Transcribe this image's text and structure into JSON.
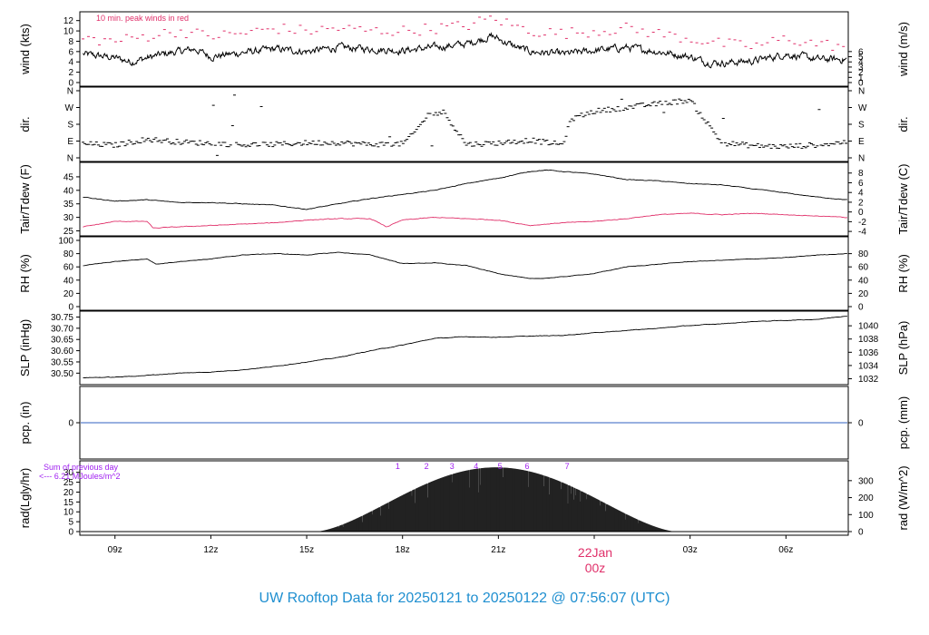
{
  "title": "UW Rooftop Data for 20250121  to  20250122 @ 07:56:07  (UTC)",
  "colors": {
    "title": "#1f8fd0",
    "peak": "#e0306a",
    "dew": "#e0306a",
    "pcp_line": "#3060c0",
    "sum_note": "#a020f0",
    "date_label": "#e0306a",
    "line": "#000000"
  },
  "x_axis": {
    "start_hour": 7.9,
    "end_hour": 31.95,
    "ticks": [
      {
        "hour": 9,
        "label": "09z"
      },
      {
        "hour": 12,
        "label": "12z"
      },
      {
        "hour": 15,
        "label": "15z"
      },
      {
        "hour": 18,
        "label": "18z"
      },
      {
        "hour": 21,
        "label": "21z"
      },
      {
        "hour": 24,
        "label": ""
      },
      {
        "hour": 27,
        "label": "03z"
      },
      {
        "hour": 30,
        "label": "06z"
      }
    ],
    "date_label": "22Jan",
    "date_sub": "00z"
  },
  "chart_data": [
    {
      "id": "wind",
      "type": "line",
      "ylabel": "wind (kts)",
      "ylabel_right": "wind (m/s)",
      "ylim": [
        0,
        13
      ],
      "yticks": [
        "0",
        "2",
        "4",
        "6",
        "8",
        "10",
        "12"
      ],
      "right_ticks": [
        {
          "value": 0,
          "label": "0"
        },
        {
          "value": 1,
          "label": "1"
        },
        {
          "value": 2,
          "label": "2"
        },
        {
          "value": 3,
          "label": "3"
        },
        {
          "value": 4,
          "label": "4"
        },
        {
          "value": 5,
          "label": "5"
        },
        {
          "value": 6,
          "label": "6"
        }
      ],
      "right_factor": 0.5144,
      "annotation": "10 min. peak winds in red",
      "noise": 1.1,
      "series": [
        {
          "role": "wind",
          "x": [
            8.0,
            9.0,
            9.5,
            10.5,
            11.5,
            12.0,
            13.0,
            14.0,
            15.0,
            16.0,
            17.0,
            18.0,
            19.0,
            20.0,
            20.8,
            21.5,
            22.0,
            23.0,
            24.0,
            25.0,
            26.0,
            27.0,
            27.5,
            28.0,
            29.0,
            30.0,
            31.0,
            31.9
          ],
          "y": [
            5.5,
            4.8,
            4.0,
            5.5,
            6.5,
            5.0,
            5.8,
            6.5,
            6.0,
            6.8,
            6.5,
            6.2,
            6.8,
            7.5,
            9.0,
            7.0,
            6.0,
            5.5,
            6.2,
            6.8,
            6.0,
            5.0,
            4.0,
            3.8,
            4.2,
            5.5,
            4.5,
            4.5
          ]
        },
        {
          "role": "peak",
          "x": [
            8.0,
            9.0,
            10.0,
            11.0,
            12.0,
            13.0,
            14.0,
            15.0,
            16.0,
            17.0,
            18.0,
            19.0,
            20.0,
            20.8,
            21.5,
            22.0,
            23.0,
            24.0,
            25.0,
            26.0,
            27.0,
            28.0,
            29.0,
            30.0,
            31.0,
            31.9
          ],
          "y": [
            8.5,
            8.0,
            9.0,
            10.0,
            9.0,
            9.5,
            10.5,
            10.0,
            10.5,
            10.0,
            10.0,
            10.5,
            11.0,
            12.5,
            11.0,
            10.0,
            9.5,
            10.0,
            10.5,
            9.5,
            8.5,
            7.5,
            7.0,
            8.5,
            7.5,
            7.0
          ]
        }
      ]
    },
    {
      "id": "dir",
      "type": "scatter",
      "ylabel": "dir.",
      "ylabel_right": "dir.",
      "ylim": [
        0,
        360
      ],
      "ytick_values": [
        0,
        90,
        180,
        270,
        360
      ],
      "yticks": [
        "N",
        "E",
        "S",
        "W",
        "N"
      ],
      "series": [
        {
          "role": "dir",
          "x": [
            8.0,
            9.0,
            10.0,
            11.0,
            12.0,
            13.0,
            14.0,
            15.0,
            16.0,
            17.0,
            18.0,
            18.3,
            18.8,
            19.3,
            19.6,
            20.0,
            21.0,
            22.0,
            23.0,
            23.3,
            24.0,
            25.0,
            26.0,
            26.5,
            27.0,
            28.0,
            29.0,
            30.0,
            31.0,
            31.9
          ],
          "y": [
            75,
            68,
            100,
            85,
            78,
            70,
            72,
            80,
            82,
            72,
            75,
            120,
            230,
            245,
            170,
            72,
            80,
            95,
            70,
            210,
            250,
            270,
            290,
            300,
            310,
            80,
            65,
            60,
            70,
            85
          ]
        }
      ]
    },
    {
      "id": "temp",
      "type": "line",
      "ylabel": "Tair/Tdew (F)",
      "ylabel_right": "Tair/Tdew (C)",
      "ylim": [
        24.5,
        49
      ],
      "yticks": [
        "25",
        "30",
        "35",
        "40",
        "45"
      ],
      "right_ticks": [
        {
          "value": 24.8,
          "label": "-4"
        },
        {
          "value": 28.4,
          "label": "-2"
        },
        {
          "value": 32.0,
          "label": "0"
        },
        {
          "value": 35.6,
          "label": "2"
        },
        {
          "value": 39.2,
          "label": "4"
        },
        {
          "value": 42.8,
          "label": "6"
        },
        {
          "value": 46.4,
          "label": "8"
        }
      ],
      "noise": 0.2,
      "series": [
        {
          "role": "tair",
          "x": [
            8.0,
            9.0,
            10.0,
            11.0,
            12.0,
            13.0,
            14.0,
            15.0,
            16.0,
            17.0,
            18.0,
            19.0,
            20.0,
            21.0,
            22.0,
            22.5,
            23.0,
            24.0,
            25.0,
            26.0,
            27.0,
            28.0,
            29.0,
            30.0,
            31.0,
            31.9
          ],
          "y": [
            37.5,
            36.0,
            36.5,
            35.5,
            35.5,
            35.0,
            34.5,
            33.0,
            35.0,
            37.0,
            38.5,
            40.0,
            42.5,
            44.5,
            47.0,
            47.5,
            47.0,
            46.0,
            44.0,
            43.5,
            42.5,
            42.0,
            40.5,
            39.0,
            37.5,
            36.5
          ]
        },
        {
          "role": "tdew",
          "x": [
            8.0,
            8.5,
            9.0,
            10.0,
            10.2,
            11.0,
            12.0,
            13.0,
            14.0,
            15.0,
            16.0,
            17.0,
            17.5,
            18.0,
            19.0,
            20.0,
            21.0,
            22.0,
            23.0,
            24.0,
            25.0,
            26.0,
            27.0,
            28.0,
            29.0,
            30.0,
            31.0,
            31.9
          ],
          "y": [
            26.5,
            27.5,
            28.5,
            28.5,
            26.0,
            26.5,
            27.0,
            27.5,
            28.0,
            29.0,
            29.5,
            29.5,
            26.5,
            29.0,
            30.0,
            29.5,
            29.0,
            27.0,
            28.0,
            28.5,
            29.5,
            31.0,
            31.5,
            31.0,
            31.5,
            31.0,
            30.5,
            30.0
          ]
        }
      ]
    },
    {
      "id": "rh",
      "type": "line",
      "ylabel": "RH (%)",
      "ylabel_right": "RH (%)",
      "ylim": [
        0,
        100
      ],
      "yticks": [
        "0",
        "20",
        "40",
        "60",
        "80",
        "100"
      ],
      "right_ticks": [
        {
          "value": 0,
          "label": "0"
        },
        {
          "value": 20,
          "label": "20"
        },
        {
          "value": 40,
          "label": "40"
        },
        {
          "value": 60,
          "label": "60"
        },
        {
          "value": 80,
          "label": "80"
        }
      ],
      "noise": 0.6,
      "series": [
        {
          "role": "rh",
          "x": [
            8.0,
            9.0,
            10.0,
            10.3,
            11.0,
            12.0,
            13.0,
            14.0,
            15.0,
            16.0,
            17.0,
            18.0,
            19.0,
            20.0,
            21.0,
            22.0,
            22.5,
            23.0,
            24.0,
            25.0,
            26.0,
            27.0,
            28.0,
            29.0,
            30.0,
            31.0,
            31.9
          ],
          "y": [
            62,
            68,
            72,
            64,
            68,
            72,
            78,
            80,
            78,
            82,
            78,
            65,
            66,
            62,
            50,
            42,
            43,
            45,
            50,
            60,
            64,
            68,
            70,
            72,
            74,
            78,
            80
          ]
        }
      ]
    },
    {
      "id": "slp",
      "type": "line",
      "ylabel": "SLP (inHg)",
      "ylabel_right": "SLP (hPa)",
      "ylim": [
        30.465,
        30.76
      ],
      "yticks": [
        "30.50",
        "30.55",
        "30.60",
        "30.65",
        "30.70",
        "30.75"
      ],
      "right_ticks": [
        {
          "value": 30.475,
          "label": "1032"
        },
        {
          "value": 30.534,
          "label": "1034"
        },
        {
          "value": 30.593,
          "label": "1036"
        },
        {
          "value": 30.652,
          "label": "1038"
        },
        {
          "value": 30.711,
          "label": "1040"
        }
      ],
      "noise": 0.002,
      "series": [
        {
          "role": "slp",
          "x": [
            8.0,
            9.0,
            10.0,
            11.0,
            12.0,
            13.0,
            14.0,
            15.0,
            16.0,
            17.0,
            18.0,
            19.0,
            20.0,
            21.0,
            22.0,
            23.0,
            24.0,
            25.0,
            26.0,
            27.0,
            28.0,
            29.0,
            30.0,
            31.0,
            31.9
          ],
          "y": [
            30.48,
            30.482,
            30.49,
            30.5,
            30.505,
            30.515,
            30.53,
            30.55,
            30.57,
            30.6,
            30.625,
            30.655,
            30.662,
            30.66,
            30.665,
            30.668,
            30.68,
            30.69,
            30.7,
            30.712,
            30.72,
            30.73,
            30.735,
            30.74,
            30.755
          ]
        }
      ]
    },
    {
      "id": "pcp",
      "type": "line",
      "ylabel": "pcp. (in)",
      "ylabel_right": "pcp. (mm)",
      "ylim": [
        -1,
        1
      ],
      "yticks": [
        "0"
      ],
      "ytick_values": [
        0
      ],
      "right_ticks": [
        {
          "value": 0,
          "label": "0"
        }
      ],
      "series": [
        {
          "role": "pcp",
          "x": [
            7.9,
            31.95
          ],
          "y": [
            0,
            0
          ]
        }
      ]
    },
    {
      "id": "rad",
      "type": "area",
      "ylabel": "rad(Lgly/hr)",
      "ylabel_right": "rad (W/m^2)",
      "ylim": [
        0,
        34
      ],
      "yticks": [
        "0",
        "5",
        "10",
        "15",
        "20",
        "25",
        "30"
      ],
      "right_ticks": [
        {
          "value": 0,
          "label": "0"
        },
        {
          "value": 8.6,
          "label": "100"
        },
        {
          "value": 17.2,
          "label": "200"
        },
        {
          "value": 25.8,
          "label": "300"
        }
      ],
      "sum_note": [
        "Sum of previous day",
        "<--- 6.21 MJoules/m^2"
      ],
      "sunrise_hour": 15.3,
      "sunset_hour": 26.55,
      "peak": 32.5,
      "markers": [
        {
          "hour": 17.85,
          "label": "1"
        },
        {
          "hour": 18.75,
          "label": "2"
        },
        {
          "hour": 19.55,
          "label": "3"
        },
        {
          "hour": 20.3,
          "label": "4"
        },
        {
          "hour": 21.05,
          "label": "5"
        },
        {
          "hour": 21.9,
          "label": "6"
        },
        {
          "hour": 23.15,
          "label": "7"
        }
      ]
    }
  ]
}
